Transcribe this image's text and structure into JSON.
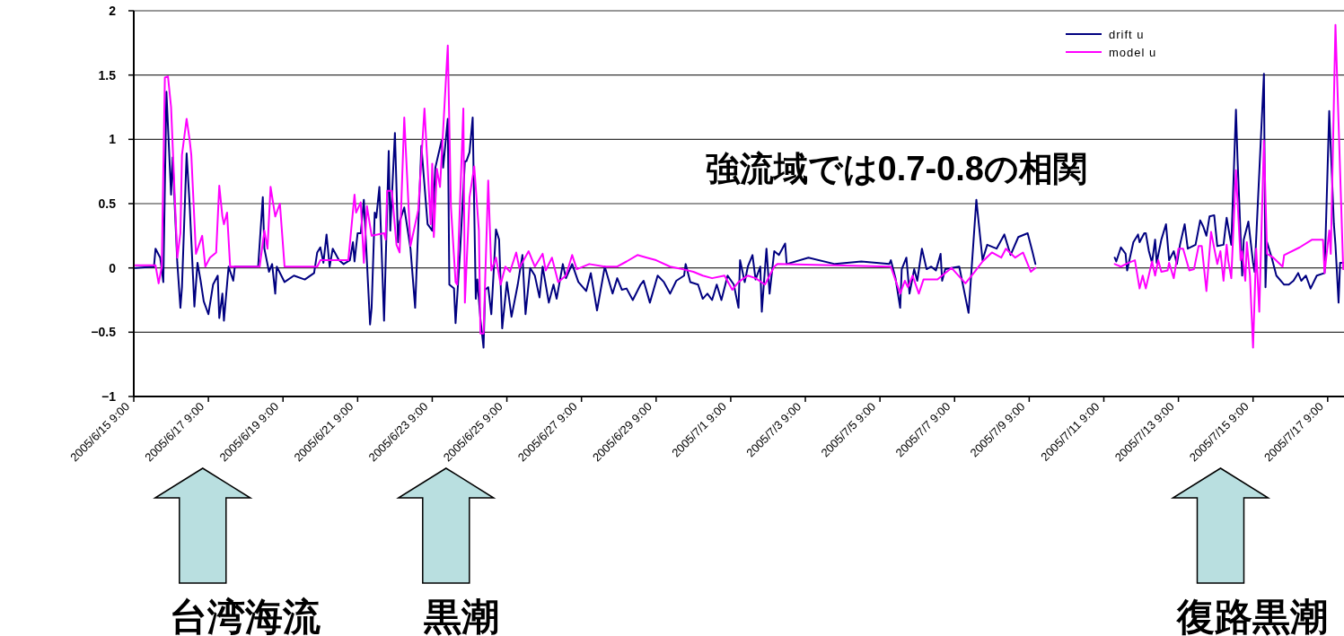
{
  "chart_data": {
    "type": "line",
    "xlim": [
      "2005-06-15T09:00",
      "2005-07-17T19:30"
    ],
    "ylim": [
      -1,
      2
    ],
    "xticks": [
      {
        "value": "2005-06-15T09:00",
        "label": "2005/6/15 9:00"
      },
      {
        "value": "2005-06-17T09:00",
        "label": "2005/6/17 9:00"
      },
      {
        "value": "2005-06-19T09:00",
        "label": "2005/6/19 9:00"
      },
      {
        "value": "2005-06-21T09:00",
        "label": "2005/6/21 9:00"
      },
      {
        "value": "2005-06-23T09:00",
        "label": "2005/6/23 9:00"
      },
      {
        "value": "2005-06-25T09:00",
        "label": "2005/6/25 9:00"
      },
      {
        "value": "2005-06-27T09:00",
        "label": "2005/6/27 9:00"
      },
      {
        "value": "2005-06-29T09:00",
        "label": "2005/6/29 9:00"
      },
      {
        "value": "2005-07-01T09:00",
        "label": "2005/7/1 9:00"
      },
      {
        "value": "2005-07-03T09:00",
        "label": "2005/7/3 9:00"
      },
      {
        "value": "2005-07-05T09:00",
        "label": "2005/7/5 9:00"
      },
      {
        "value": "2005-07-07T09:00",
        "label": "2005/7/7 9:00"
      },
      {
        "value": "2005-07-09T09:00",
        "label": "2005/7/9 9:00"
      },
      {
        "value": "2005-07-11T09:00",
        "label": "2005/7/11 9:00"
      },
      {
        "value": "2005-07-13T09:00",
        "label": "2005/7/13 9:00"
      },
      {
        "value": "2005-07-15T09:00",
        "label": "2005/7/15 9:00"
      },
      {
        "value": "2005-07-17T09:00",
        "label": "2005/7/17 9:00"
      }
    ],
    "yticks": [
      2,
      1.5,
      1,
      0.5,
      0,
      {
        "value": -0.5,
        "label": "−0.5"
      },
      {
        "value": -1,
        "label": "−1"
      }
    ],
    "grid": "y",
    "legend": "top right",
    "series": [
      {
        "name": "drift u",
        "color": "#000080",
        "x": [
          "2005-06-15T10:00",
          "2005-06-15T22:00",
          "2005-06-15T23:00",
          "2005-06-16T02:00",
          "2005-06-16T04:00",
          "2005-06-16T06:00",
          "2005-06-16T09:00",
          "2005-06-16T10:00",
          "2005-06-16T13:00",
          "2005-06-16T15:00",
          "2005-06-16T16:00",
          "2005-06-16T19:00",
          "2005-06-16T21:00",
          "2005-06-17T00:00",
          "2005-06-17T02:00",
          "2005-06-17T04:00",
          "2005-06-17T06:00",
          "2005-06-17T09:00",
          "2005-06-17T12:00",
          "2005-06-17T15:00",
          "2005-06-17T16:00",
          "2005-06-17T18:00",
          "2005-06-17T19:00",
          "2005-06-17T22:00",
          "2005-06-18T01:00",
          "2005-06-18T02:00",
          "2005-06-18T17:00",
          "2005-06-18T20:00",
          "2005-06-18T21:00",
          "2005-06-19T00:00",
          "2005-06-19T02:00",
          "2005-06-19T04:00",
          "2005-06-19T05:00",
          "2005-06-19T10:00",
          "2005-06-19T16:00",
          "2005-06-19T23:00",
          "2005-06-20T05:00",
          "2005-06-20T07:00",
          "2005-06-20T09:00",
          "2005-06-20T11:00",
          "2005-06-20T13:00",
          "2005-06-20T15:00",
          "2005-06-20T17:00",
          "2005-06-20T21:00",
          "2005-06-21T00:00",
          "2005-06-21T04:00",
          "2005-06-21T06:00",
          "2005-06-21T07:00",
          "2005-06-21T09:00",
          "2005-06-21T11:00",
          "2005-06-21T13:00",
          "2005-06-21T17:00",
          "2005-06-21T18:00",
          "2005-06-21T20:00",
          "2005-06-21T21:00",
          "2005-06-21T23:00",
          "2005-06-22T02:00",
          "2005-06-22T05:00",
          "2005-06-22T06:00",
          "2005-06-22T09:00",
          "2005-06-22T11:00",
          "2005-06-22T12:00",
          "2005-06-22T15:00",
          "2005-06-22T19:00",
          "2005-06-22T22:00",
          "2005-06-23T02:00",
          "2005-06-23T06:00",
          "2005-06-23T09:00",
          "2005-06-23T11:00",
          "2005-06-23T15:00",
          "2005-06-23T16:00",
          "2005-06-23T19:00",
          "2005-06-23T20:00",
          "2005-06-23T23:00",
          "2005-06-24T00:00",
          "2005-06-24T03:00",
          "2005-06-24T06:00",
          "2005-06-24T07:00",
          "2005-06-24T09:00",
          "2005-06-24T11:00",
          "2005-06-24T13:00",
          "2005-06-24T14:00",
          "2005-06-24T16:00",
          "2005-06-24T18:00",
          "2005-06-24T19:00",
          "2005-06-24T21:00",
          "2005-06-24T23:00",
          "2005-06-25T02:00",
          "2005-06-25T04:00",
          "2005-06-25T06:00",
          "2005-06-25T09:00",
          "2005-06-25T12:00",
          "2005-06-25T16:00",
          "2005-06-25T19:00",
          "2005-06-25T21:00",
          "2005-06-26T00:00",
          "2005-06-26T03:00",
          "2005-06-26T06:00",
          "2005-06-26T08:00",
          "2005-06-26T12:00",
          "2005-06-26T15:00",
          "2005-06-26T17:00",
          "2005-06-26T21:00",
          "2005-06-26T23:00",
          "2005-06-27T03:00",
          "2005-06-27T07:00",
          "2005-06-27T12:00",
          "2005-06-27T15:00",
          "2005-06-27T19:00",
          "2005-06-28T00:00",
          "2005-06-28T05:00",
          "2005-06-28T08:00",
          "2005-06-28T11:00",
          "2005-06-28T14:00",
          "2005-06-28T18:00",
          "2005-06-28T23:00",
          "2005-06-29T01:00",
          "2005-06-29T05:00",
          "2005-06-29T10:00",
          "2005-06-29T14:00",
          "2005-06-29T18:00",
          "2005-06-29T22:00",
          "2005-06-30T03:00",
          "2005-06-30T04:00",
          "2005-06-30T07:00",
          "2005-06-30T12:00",
          "2005-06-30T15:00",
          "2005-06-30T18:00",
          "2005-06-30T21:00",
          "2005-07-01T00:00",
          "2005-07-01T03:00",
          "2005-07-01T07:00",
          "2005-07-01T11:00",
          "2005-07-01T14:00",
          "2005-07-01T15:00",
          "2005-07-01T18:00",
          "2005-07-01T20:00",
          "2005-07-01T23:00",
          "2005-07-02T01:00",
          "2005-07-02T04:00",
          "2005-07-02T05:00",
          "2005-07-02T08:00",
          "2005-07-02T10:00",
          "2005-07-02T13:00",
          "2005-07-02T16:00",
          "2005-07-02T20:00",
          "2005-07-02T21:00",
          "2005-07-03T11:00",
          "2005-07-04T04:00",
          "2005-07-04T21:00",
          "2005-07-05T15:00",
          "2005-07-05T16:00",
          "2005-07-05T19:00",
          "2005-07-05T22:00",
          "2005-07-05T23:00",
          "2005-07-06T02:00",
          "2005-07-06T04:00",
          "2005-07-06T07:00",
          "2005-07-06T09:00",
          "2005-07-06T12:00",
          "2005-07-06T15:00",
          "2005-07-06T18:00",
          "2005-07-06T21:00",
          "2005-07-07T00:00",
          "2005-07-07T01:00",
          "2005-07-07T03:00",
          "2005-07-07T07:00",
          "2005-07-07T12:00",
          "2005-07-07T18:00",
          "2005-07-07T23:00",
          "2005-07-08T03:00",
          "2005-07-08T06:00",
          "2005-07-08T12:00",
          "2005-07-08T17:00",
          "2005-07-08T21:00",
          "2005-07-09T02:00",
          "2005-07-09T08:00",
          "2005-07-09T11:00",
          "2005-07-09T13:00",
          "2005-07-10T12:00",
          "2005-07-11T16:00",
          "2005-07-11T17:00",
          "2005-07-11T20:00",
          "2005-07-11T23:00",
          "2005-07-12T00:00",
          "2005-07-12T04:00",
          "2005-07-12T07:00",
          "2005-07-12T08:00",
          "2005-07-12T11:00",
          "2005-07-12T12:00",
          "2005-07-12T14:00",
          "2005-07-12T16:00",
          "2005-07-12T18:00",
          "2005-07-12T19:00",
          "2005-07-12T22:00",
          "2005-07-13T01:00",
          "2005-07-13T03:00",
          "2005-07-13T06:00",
          "2005-07-13T08:00",
          "2005-07-13T10:00",
          "2005-07-13T13:00",
          "2005-07-13T15:00",
          "2005-07-13T20:00",
          "2005-07-13T23:00",
          "2005-07-14T01:00",
          "2005-07-14T03:00",
          "2005-07-14T05:00",
          "2005-07-14T08:00",
          "2005-07-14T10:00",
          "2005-07-14T14:00",
          "2005-07-14T16:00",
          "2005-07-14T19:00",
          "2005-07-14T22:00",
          "2005-07-14T23:00",
          "2005-07-15T02:00",
          "2005-07-15T03:00",
          "2005-07-15T06:00",
          "2005-07-15T09:00",
          "2005-07-15T10:00",
          "2005-07-15T16:00",
          "2005-07-15T17:00",
          "2005-07-15T18:00",
          "2005-07-15T21:00",
          "2005-07-16T00:00",
          "2005-07-16T05:00",
          "2005-07-16T08:00",
          "2005-07-16T11:00",
          "2005-07-16T14:00",
          "2005-07-16T16:00",
          "2005-07-16T19:00",
          "2005-07-16T22:00",
          "2005-07-17T02:00",
          "2005-07-17T07:00",
          "2005-07-17T10:00",
          "2005-07-17T13:00",
          "2005-07-17T14:00",
          "2005-07-17T16:00",
          "2005-07-17T17:00",
          "2005-07-17T19:00"
        ],
        "values": [
          0,
          0.01,
          0.15,
          0.08,
          -0.11,
          1.37,
          0.57,
          0.86,
          0.04,
          -0.31,
          -0.15,
          0.89,
          0.48,
          -0.3,
          0.04,
          -0.1,
          -0.26,
          -0.36,
          -0.13,
          -0.06,
          -0.39,
          -0.2,
          -0.41,
          0.01,
          -0.1,
          0.01,
          0.01,
          0.55,
          0.15,
          -0.03,
          0.03,
          -0.2,
          0.01,
          -0.11,
          -0.06,
          -0.09,
          -0.04,
          0.12,
          0.16,
          0.04,
          0.26,
          0.01,
          0.15,
          0.06,
          0.03,
          0.06,
          0.2,
          0.05,
          0.27,
          0.27,
          0.53,
          -0.44,
          -0.31,
          0.43,
          0.39,
          0.63,
          -0.41,
          0.91,
          0.29,
          1.05,
          0.2,
          0.36,
          0.47,
          0.15,
          -0.31,
          0.95,
          0.34,
          0.29,
          0.78,
          0.99,
          0.78,
          1.16,
          -0.13,
          -0.16,
          -0.43,
          0.15,
          0.83,
          0.83,
          0.9,
          1.17,
          -0.24,
          -0.09,
          -0.4,
          -0.62,
          -0.17,
          -0.15,
          -0.36,
          0.3,
          0.22,
          -0.47,
          -0.11,
          -0.38,
          -0.13,
          0.1,
          -0.36,
          0,
          -0.06,
          -0.23,
          0.01,
          -0.27,
          -0.13,
          -0.24,
          0.03,
          -0.08,
          0.03,
          -0.11,
          -0.18,
          -0.04,
          -0.33,
          0.01,
          -0.2,
          -0.08,
          -0.17,
          -0.16,
          -0.25,
          -0.13,
          -0.1,
          -0.27,
          -0.06,
          -0.11,
          -0.2,
          -0.1,
          -0.06,
          0.03,
          -0.11,
          -0.13,
          -0.24,
          -0.2,
          -0.25,
          -0.13,
          -0.25,
          -0.06,
          -0.13,
          -0.31,
          0.06,
          -0.11,
          0.01,
          0.1,
          -0.09,
          0.01,
          -0.34,
          0.15,
          -0.2,
          0.13,
          0.1,
          0.19,
          0.03,
          0.08,
          0.03,
          0.05,
          0.03,
          0.06,
          -0.08,
          -0.31,
          -0.01,
          0.08,
          -0.2,
          -0.01,
          -0.1,
          0.15,
          -0.01,
          0.01,
          -0.02,
          0.11,
          -0.1,
          -0.01,
          0,
          0.01,
          -0.35,
          0.53,
          0.06,
          0.18,
          0.15,
          0.26,
          0.1,
          0.24,
          0.27,
          0.13,
          0.03,
          null,
          0.08,
          0.05,
          0.16,
          0.11,
          -0.02,
          0.2,
          0.26,
          0.2,
          0.27,
          0.27,
          0.13,
          0.04,
          0.22,
          0.04,
          0.22,
          0.34,
          0.06,
          0.13,
          0.03,
          0.18,
          0.34,
          0.15,
          0.18,
          0.37,
          0.32,
          0.25,
          0.4,
          0.41,
          0.17,
          0.18,
          0.39,
          0.18,
          1.23,
          0.85,
          -0.06,
          0.22,
          0.36,
          0.04,
          -0.03,
          1.51,
          -0.15,
          0.2,
          0.08,
          -0.06,
          -0.13,
          -0.13,
          -0.1,
          -0.04,
          -0.1,
          -0.06,
          -0.16,
          -0.06,
          -0.04,
          1.22,
          0.34,
          0.18,
          -0.27,
          0.04,
          0.04
        ]
      },
      {
        "name": "model u",
        "color": "#ff00ff",
        "x": [
          "2005-06-15T10:00",
          "2005-06-15T23:00",
          "2005-06-16T01:00",
          "2005-06-16T03:00",
          "2005-06-16T05:00",
          "2005-06-16T07:00",
          "2005-06-16T09:00",
          "2005-06-16T13:00",
          "2005-06-16T15:00",
          "2005-06-16T16:00",
          "2005-06-16T19:00",
          "2005-06-16T21:00",
          "2005-06-16T22:00",
          "2005-06-17T01:00",
          "2005-06-17T05:00",
          "2005-06-17T07:00",
          "2005-06-17T10:00",
          "2005-06-17T14:00",
          "2005-06-17T16:00",
          "2005-06-17T18:00",
          "2005-06-17T19:00",
          "2005-06-17T21:00",
          "2005-06-17T23:00",
          "2005-06-18T18:00",
          "2005-06-18T21:00",
          "2005-06-18T23:00",
          "2005-06-19T01:00",
          "2005-06-19T04:00",
          "2005-06-19T07:00",
          "2005-06-19T10:00",
          "2005-06-20T07:00",
          "2005-06-20T09:00",
          "2005-06-21T03:00",
          "2005-06-21T07:00",
          "2005-06-21T08:00",
          "2005-06-21T11:00",
          "2005-06-21T13:00",
          "2005-06-21T15:00",
          "2005-06-21T18:00",
          "2005-06-22T02:00",
          "2005-06-22T03:00",
          "2005-06-22T04:00",
          "2005-06-22T07:00",
          "2005-06-22T10:00",
          "2005-06-22T12:00",
          "2005-06-22T15:00",
          "2005-06-22T19:00",
          "2005-06-23T00:00",
          "2005-06-23T04:00",
          "2005-06-23T08:00",
          "2005-06-23T09:00",
          "2005-06-23T10:00",
          "2005-06-23T12:00",
          "2005-06-23T14:00",
          "2005-06-23T19:00",
          "2005-06-23T21:00",
          "2005-06-24T00:00",
          "2005-06-24T01:00",
          "2005-06-24T05:00",
          "2005-06-24T06:00",
          "2005-06-24T09:00",
          "2005-06-24T12:00",
          "2005-06-24T15:00",
          "2005-06-24T16:00",
          "2005-06-24T18:00",
          "2005-06-24T21:00",
          "2005-06-24T23:00",
          "2005-06-25T02:00",
          "2005-06-25T05:00",
          "2005-06-25T08:00",
          "2005-06-25T11:00",
          "2005-06-25T15:00",
          "2005-06-25T17:00",
          "2005-06-25T23:00",
          "2005-06-26T03:00",
          "2005-06-26T08:00",
          "2005-06-26T10:00",
          "2005-06-26T14:00",
          "2005-06-26T18:00",
          "2005-06-26T23:00",
          "2005-06-27T03:00",
          "2005-06-27T06:00",
          "2005-06-27T14:00",
          "2005-06-28T00:00",
          "2005-06-28T08:00",
          "2005-06-28T14:00",
          "2005-06-28T21:00",
          "2005-06-29T03:00",
          "2005-06-29T09:00",
          "2005-06-29T18:00",
          "2005-06-30T02:00",
          "2005-06-30T09:00",
          "2005-06-30T15:00",
          "2005-06-30T21:00",
          "2005-07-01T05:00",
          "2005-07-01T10:00",
          "2005-07-01T14:00",
          "2005-07-01T20:00",
          "2005-07-02T01:00",
          "2005-07-02T07:00",
          "2005-07-02T13:00",
          "2005-07-02T15:00",
          "2005-07-05T16:00",
          "2005-07-05T22:00",
          "2005-07-06T01:00",
          "2005-07-06T03:00",
          "2005-07-06T06:00",
          "2005-07-06T10:00",
          "2005-07-06T13:00",
          "2005-07-06T22:00",
          "2005-07-07T01:00",
          "2005-07-07T07:00",
          "2005-07-07T16:00",
          "2005-07-07T22:00",
          "2005-07-08T03:00",
          "2005-07-08T09:00",
          "2005-07-08T15:00",
          "2005-07-08T18:00",
          "2005-07-09T00:00",
          "2005-07-09T05:00",
          "2005-07-09T10:00",
          "2005-07-09T13:00",
          "2005-07-10T12:00",
          "2005-07-11T16:00",
          "2005-07-11T20:00",
          "2005-07-12T01:00",
          "2005-07-12T05:00",
          "2005-07-12T08:00",
          "2005-07-12T10:00",
          "2005-07-12T12:00",
          "2005-07-12T16:00",
          "2005-07-12T18:00",
          "2005-07-12T20:00",
          "2005-07-12T22:00",
          "2005-07-13T02:00",
          "2005-07-13T03:00",
          "2005-07-13T06:00",
          "2005-07-13T09:00",
          "2005-07-13T12:00",
          "2005-07-13T16:00",
          "2005-07-13T19:00",
          "2005-07-13T22:00",
          "2005-07-14T00:00",
          "2005-07-14T03:00",
          "2005-07-14T06:00",
          "2005-07-14T10:00",
          "2005-07-14T12:00",
          "2005-07-14T14:00",
          "2005-07-14T16:00",
          "2005-07-14T17:00",
          "2005-07-14T19:00",
          "2005-07-14T22:00",
          "2005-07-15T01:00",
          "2005-07-15T02:00",
          "2005-07-15T04:00",
          "2005-07-15T05:00",
          "2005-07-15T07:00",
          "2005-07-15T09:00",
          "2005-07-15T11:00",
          "2005-07-15T13:00",
          "2005-07-15T16:00",
          "2005-07-15T18:00",
          "2005-07-15T22:00",
          "2005-07-16T04:00",
          "2005-07-16T05:00",
          "2005-07-16T15:00",
          "2005-07-16T23:00",
          "2005-07-17T06:00",
          "2005-07-17T07:00",
          "2005-07-17T10:00",
          "2005-07-17T11:00",
          "2005-07-17T14:00",
          "2005-07-17T19:00"
        ],
        "values": [
          0.02,
          0.02,
          -0.12,
          0.01,
          1.48,
          1.49,
          1.25,
          0.08,
          0.27,
          0.88,
          1.16,
          0.99,
          0.88,
          0.11,
          0.25,
          0.01,
          0.08,
          0.12,
          0.64,
          0.4,
          0.34,
          0.43,
          0.01,
          0.01,
          0.29,
          0.15,
          0.63,
          0.4,
          0.5,
          0.01,
          0.01,
          0.06,
          0.06,
          0.57,
          0.43,
          0.51,
          0.04,
          0.48,
          0.25,
          0.27,
          0.22,
          0.6,
          0.6,
          0.18,
          0.12,
          1.17,
          0.17,
          0.45,
          1.24,
          0.34,
          0.81,
          0.24,
          0.77,
          0.63,
          1.73,
          0.48,
          -0.11,
          -0.13,
          1.24,
          -0.27,
          0.55,
          0.79,
          0.29,
          -0.51,
          -0.51,
          0.68,
          -0.02,
          0.08,
          -0.13,
          0.01,
          -0.03,
          0.12,
          0,
          0.13,
          0.01,
          0.11,
          -0.02,
          0.08,
          -0.11,
          -0.06,
          0.1,
          -0.01,
          0.03,
          0.01,
          0.01,
          0.05,
          0.1,
          0.08,
          0.06,
          0.01,
          -0.01,
          -0.03,
          -0.06,
          -0.08,
          -0.06,
          -0.17,
          -0.11,
          -0.06,
          -0.08,
          -0.13,
          0.01,
          0.03,
          0.01,
          -0.2,
          -0.1,
          -0.15,
          -0.06,
          -0.2,
          -0.09,
          -0.09,
          -0.06,
          0,
          -0.12,
          -0.03,
          0.05,
          0.12,
          0.08,
          0.15,
          0.08,
          0.12,
          -0.03,
          0,
          null,
          0.03,
          0.01,
          0.04,
          0.06,
          -0.16,
          -0.06,
          -0.16,
          0.05,
          -0.06,
          0.06,
          -0.03,
          -0.02,
          0.04,
          -0.08,
          0.15,
          0.15,
          -0.02,
          -0.01,
          0.17,
          0.17,
          -0.18,
          0.28,
          0.03,
          0.13,
          -0.1,
          0.18,
          0.06,
          -0.08,
          0.76,
          0.06,
          0.13,
          -0.1,
          0.2,
          -0.06,
          -0.62,
          0.15,
          -0.34,
          0.99,
          0.11,
          0.08,
          0.01,
          0.1,
          0.16,
          0.22,
          0.22,
          -0.04,
          0.29,
          0.11,
          1.89,
          -0.01
        ]
      }
    ],
    "annotations": [
      "強流域では0.7-0.8の相関",
      "台湾海流",
      "黒潮",
      "復路黒潮"
    ]
  }
}
